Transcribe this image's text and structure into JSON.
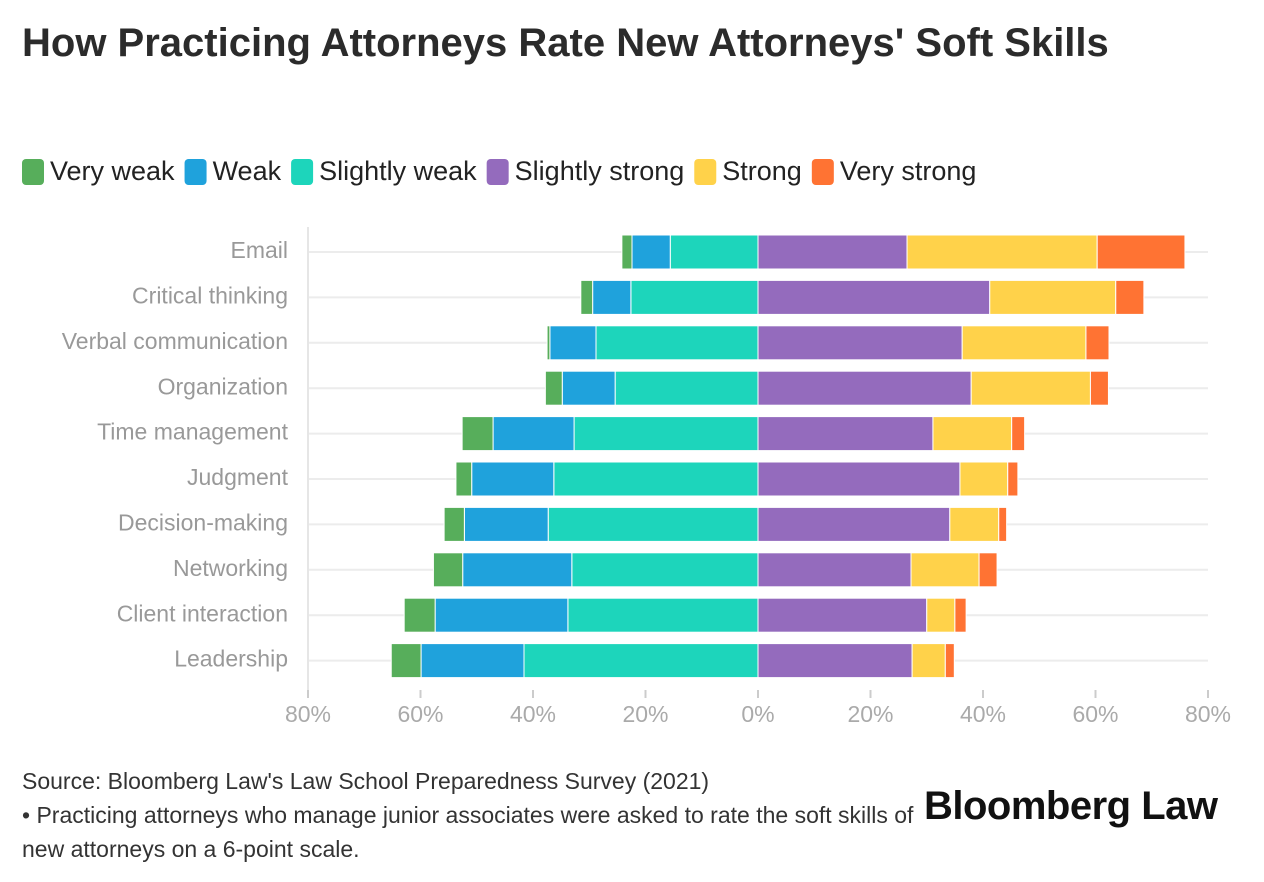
{
  "chart_data": {
    "type": "diverging-stacked-bar",
    "title": "How Practicing Attorneys Rate New Attorneys' Soft Skills",
    "categories": [
      "Email",
      "Critical thinking",
      "Verbal communication",
      "Organization",
      "Time management",
      "Judgment",
      "Decision-making",
      "Networking",
      "Client interaction",
      "Leadership"
    ],
    "series": [
      {
        "name": "Very weak",
        "color": "#57ae5b",
        "values": [
          -1.8,
          -2.1,
          -0.5,
          -3.0,
          -5.5,
          -2.8,
          -3.6,
          -5.2,
          -5.5,
          -5.3
        ]
      },
      {
        "name": "Weak",
        "color": "#1fa2dc",
        "values": [
          -6.8,
          -6.8,
          -8.2,
          -9.4,
          -14.4,
          -14.6,
          -14.9,
          -19.4,
          -23.6,
          -18.3
        ]
      },
      {
        "name": "Slightly weak",
        "color": "#1dd5bb",
        "values": [
          -15.6,
          -22.6,
          -28.8,
          -25.4,
          -32.7,
          -36.3,
          -37.3,
          -33.1,
          -33.8,
          -41.6
        ]
      },
      {
        "name": "Slightly strong",
        "color": "#946bbd",
        "values": [
          26.5,
          41.2,
          36.3,
          37.9,
          31.1,
          35.9,
          34.1,
          27.2,
          30.0,
          27.4
        ]
      },
      {
        "name": "Strong",
        "color": "#ffd24a",
        "values": [
          33.8,
          22.4,
          22.0,
          21.2,
          14.0,
          8.5,
          8.7,
          12.1,
          5.0,
          5.9
        ]
      },
      {
        "name": "Very strong",
        "color": "#ff7333",
        "values": [
          15.6,
          5.0,
          4.1,
          3.2,
          2.3,
          1.8,
          1.4,
          3.2,
          2.0,
          1.6
        ]
      }
    ],
    "xlim": [
      -80,
      80
    ],
    "xticks": [
      {
        "value": -80,
        "label": "80%"
      },
      {
        "value": -60,
        "label": "60%"
      },
      {
        "value": -40,
        "label": "40%"
      },
      {
        "value": -20,
        "label": "20%"
      },
      {
        "value": 0,
        "label": "0%"
      },
      {
        "value": 20,
        "label": "20%"
      },
      {
        "value": 40,
        "label": "40%"
      },
      {
        "value": 60,
        "label": "60%"
      },
      {
        "value": 80,
        "label": "80%"
      }
    ],
    "grid": true,
    "legend": "top",
    "source": "Source: Bloomberg Law's Law School Preparedness Survey (2021)",
    "note": "• Practicing attorneys who manage junior associates were asked to rate the soft skills of new attorneys on a 6-point scale.",
    "logo": "Bloomberg Law"
  }
}
